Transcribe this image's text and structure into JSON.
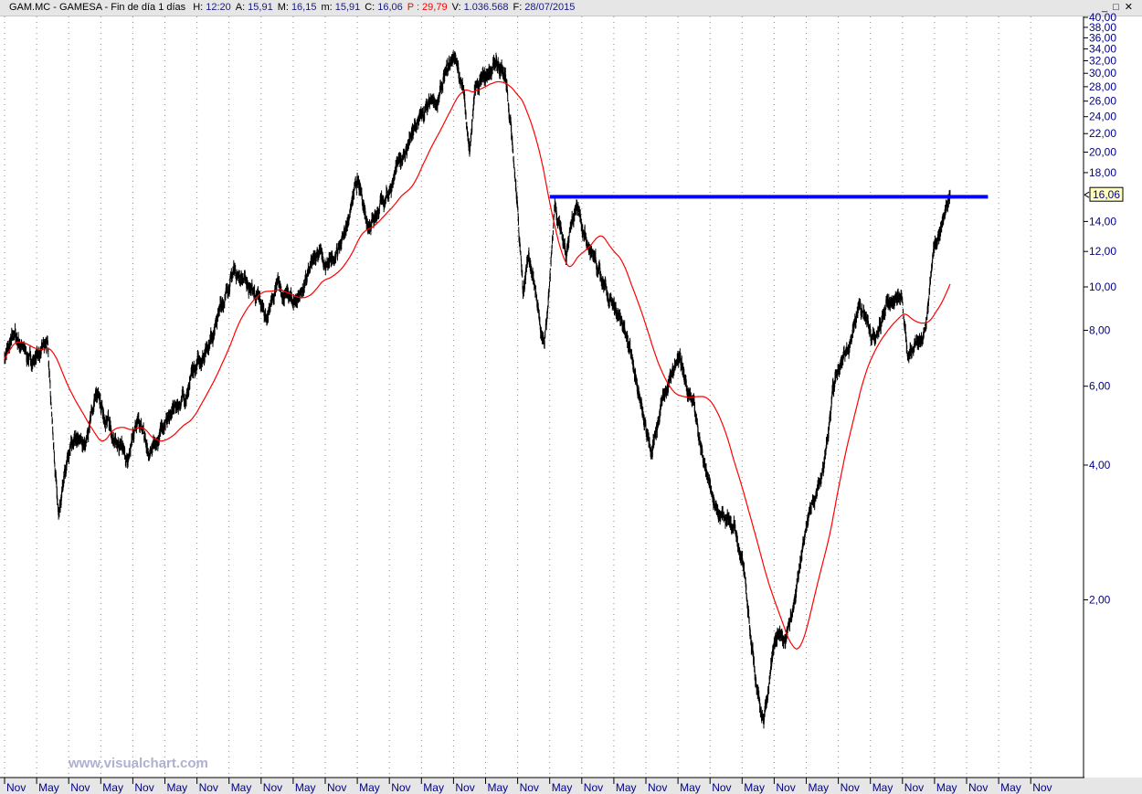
{
  "header": {
    "symbol": "GAM.MC - GAMESA - Fin de día 1 días",
    "fields": [
      {
        "label": "H:",
        "value": "12:20"
      },
      {
        "label": "A:",
        "value": "15,91"
      },
      {
        "label": "M:",
        "value": "16,15"
      },
      {
        "label": "m:",
        "value": "15,91"
      },
      {
        "label": "C:",
        "value": "16,06"
      },
      {
        "label": "P :",
        "value": "29,79",
        "color": "#ff0000"
      },
      {
        "label": "V:",
        "value": "1.036.568"
      },
      {
        "label": "F:",
        "value": "28/07/2015"
      }
    ],
    "window_buttons": [
      "minimize-icon",
      "maximize-icon",
      "close-icon"
    ]
  },
  "watermark": "www.visualchart.com",
  "chart_data": {
    "type": "line",
    "yscale": "log",
    "ylim": [
      0.85,
      40
    ],
    "y_ticks": [
      "40,00",
      "38,00",
      "36,00",
      "34,00",
      "32,00",
      "30,00",
      "28,00",
      "26,00",
      "24,00",
      "22,00",
      "20,00",
      "18,00",
      "14,00",
      "12,00",
      "10,00",
      "8,00",
      "6,00",
      "4,00",
      "2,00"
    ],
    "y_tick_values": [
      40,
      38,
      36,
      34,
      32,
      30,
      28,
      26,
      24,
      22,
      20,
      18,
      14,
      12,
      10,
      8,
      6,
      4,
      2
    ],
    "x_ticks": [
      "Nov",
      "May",
      "Nov",
      "May",
      "Nov",
      "May",
      "Nov",
      "May",
      "Nov",
      "May",
      "Nov",
      "May",
      "Nov",
      "May",
      "Nov",
      "May",
      "Nov",
      "May",
      "Nov",
      "May",
      "Nov",
      "May",
      "Nov",
      "May",
      "Nov",
      "May",
      "Nov",
      "May",
      "Nov",
      "May",
      "Nov",
      "May",
      "Nov"
    ],
    "x_start": "2000-11",
    "grid": "vertical-dotted",
    "last_price_label": "16,06",
    "series": [
      {
        "kind": "price",
        "color": "#000000",
        "points": [
          [
            "2000-11",
            7.0
          ],
          [
            "2001-01",
            7.8
          ],
          [
            "2001-04",
            6.8
          ],
          [
            "2001-07",
            7.4
          ],
          [
            "2001-09",
            3.1
          ],
          [
            "2001-11",
            4.4
          ],
          [
            "2002-02",
            4.4
          ],
          [
            "2002-04",
            5.7
          ],
          [
            "2002-07",
            4.8
          ],
          [
            "2002-10",
            4.0
          ],
          [
            "2002-12",
            5.3
          ],
          [
            "2003-02",
            4.1
          ],
          [
            "2003-05",
            5.0
          ],
          [
            "2003-09",
            5.8
          ],
          [
            "2004-02",
            8.0
          ],
          [
            "2004-06",
            11.0
          ],
          [
            "2004-09",
            10.0
          ],
          [
            "2004-12",
            8.6
          ],
          [
            "2005-02",
            10.0
          ],
          [
            "2005-05",
            9.2
          ],
          [
            "2005-07",
            10.0
          ],
          [
            "2005-10",
            12.3
          ],
          [
            "2005-11",
            10.8
          ],
          [
            "2006-02",
            12.5
          ],
          [
            "2006-05",
            17.0
          ],
          [
            "2006-07",
            14.0
          ],
          [
            "2006-10",
            15.5
          ],
          [
            "2007-01",
            19.0
          ],
          [
            "2007-05",
            24.0
          ],
          [
            "2007-08",
            26.0
          ],
          [
            "2007-11",
            33.0
          ],
          [
            "2008-01",
            27.0
          ],
          [
            "2008-02",
            20.0
          ],
          [
            "2008-03",
            27.0
          ],
          [
            "2008-07",
            32.0
          ],
          [
            "2008-09",
            28.0
          ],
          [
            "2008-10",
            22.0
          ],
          [
            "2008-12",
            10.0
          ],
          [
            "2009-01",
            12.0
          ],
          [
            "2009-04",
            7.2
          ],
          [
            "2009-06",
            15.5
          ],
          [
            "2009-08",
            12.0
          ],
          [
            "2009-10",
            15.5
          ],
          [
            "2009-12",
            12.5
          ],
          [
            "2010-03",
            10.0
          ],
          [
            "2010-05",
            8.8
          ],
          [
            "2010-08",
            7.5
          ],
          [
            "2010-10",
            5.5
          ],
          [
            "2010-12",
            4.4
          ],
          [
            "2011-02",
            5.5
          ],
          [
            "2011-05",
            6.9
          ],
          [
            "2011-08",
            5.4
          ],
          [
            "2011-10",
            4.0
          ],
          [
            "2011-12",
            3.2
          ],
          [
            "2012-03",
            3.0
          ],
          [
            "2012-05",
            2.5
          ],
          [
            "2012-07",
            1.5
          ],
          [
            "2012-09",
            1.05
          ],
          [
            "2012-11",
            1.6
          ],
          [
            "2013-01",
            1.7
          ],
          [
            "2013-03",
            2.0
          ],
          [
            "2013-05",
            3.0
          ],
          [
            "2013-08",
            3.8
          ],
          [
            "2013-10",
            6.0
          ],
          [
            "2013-12",
            6.8
          ],
          [
            "2014-03",
            9.0
          ],
          [
            "2014-06",
            7.5
          ],
          [
            "2014-08",
            9.0
          ],
          [
            "2014-11",
            9.5
          ],
          [
            "2014-12",
            7.0
          ],
          [
            "2015-03",
            7.8
          ],
          [
            "2015-05",
            12.0
          ],
          [
            "2015-06",
            13.5
          ],
          [
            "2015-07",
            16.06
          ]
        ]
      },
      {
        "kind": "moving-average",
        "color": "#ff0000"
      },
      {
        "kind": "horizontal-level",
        "color": "#0000ff",
        "value": 15.9,
        "from": "2009-05",
        "to": "2016-03"
      }
    ]
  }
}
